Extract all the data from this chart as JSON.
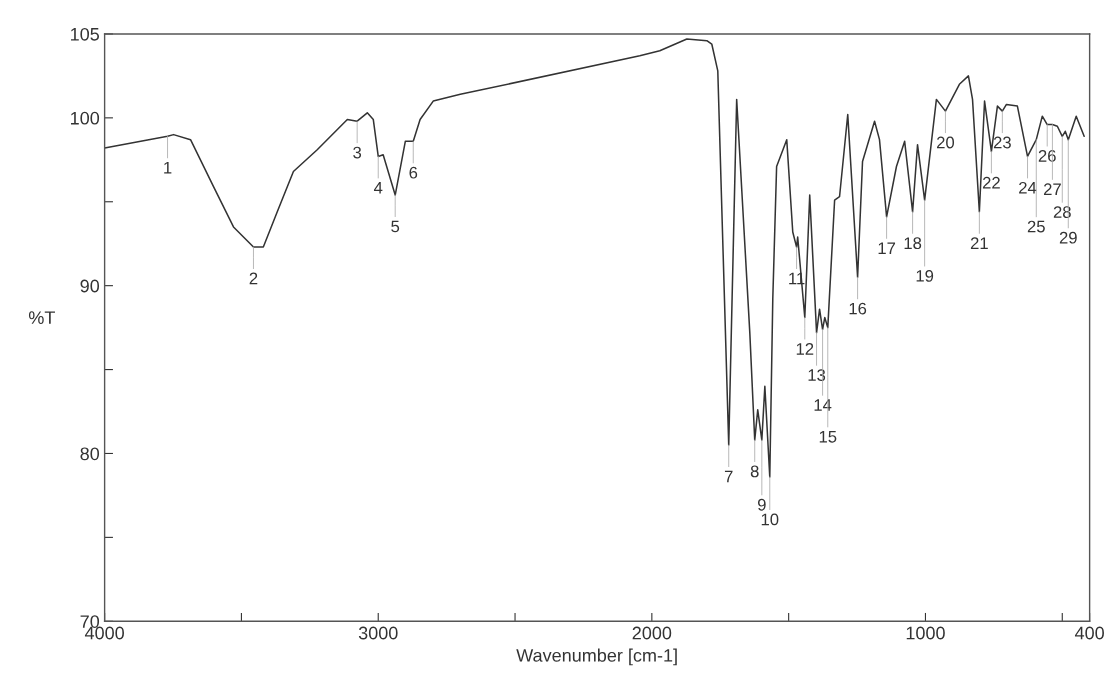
{
  "chart_data": {
    "type": "line",
    "xlabel": "Wavenumber [cm-1]",
    "ylabel": "%T",
    "xlim": [
      4000,
      400
    ],
    "ylim": [
      70,
      105
    ],
    "xticks": [
      4000,
      {
        "value": 3500,
        "label": null
      },
      3000,
      {
        "value": 2500,
        "label": null
      },
      2000,
      {
        "value": 1500,
        "label": null
      },
      1000,
      {
        "value": 500,
        "label": null
      },
      400
    ],
    "yticks": [
      70,
      {
        "value": 75,
        "label": null
      },
      80,
      {
        "value": 85,
        "label": null
      },
      90,
      {
        "value": 95,
        "label": null
      },
      100,
      105
    ],
    "grid": false,
    "legend": false,
    "marker": "none",
    "line_style": "solid",
    "series": [
      {
        "color": "#333333",
        "x": [
          4000,
          3770,
          3748,
          3686,
          3602,
          3529,
          3456,
          3420,
          3369,
          3310,
          3223,
          3113,
          3077,
          3040,
          3018,
          3000,
          2982,
          2938,
          2901,
          2872,
          2847,
          2799,
          2700,
          2044,
          1971,
          1872,
          1799,
          1781,
          1759,
          1719,
          1690,
          1642,
          1624,
          1613,
          1598,
          1587,
          1569,
          1558,
          1544,
          1507,
          1485,
          1471,
          1467,
          1441,
          1423,
          1398,
          1387,
          1376,
          1368,
          1357,
          1332,
          1314,
          1284,
          1248,
          1230,
          1186,
          1168,
          1142,
          1106,
          1076,
          1047,
          1029,
          1003,
          960,
          927,
          876,
          843,
          828,
          803,
          784,
          759,
          737,
          719,
          704,
          664,
          627,
          595,
          573,
          555,
          536,
          518,
          500,
          489,
          478,
          449,
          420
        ],
        "values": [
          98.2,
          98.9,
          99.0,
          98.7,
          95.9,
          93.5,
          92.3,
          92.3,
          94.4,
          96.8,
          98.1,
          99.9,
          99.8,
          100.3,
          99.9,
          97.7,
          97.8,
          95.4,
          98.6,
          98.6,
          99.9,
          101.0,
          101.4,
          103.7,
          104.0,
          104.7,
          104.6,
          104.4,
          102.8,
          80.5,
          101.1,
          87.2,
          80.8,
          82.6,
          80.8,
          84.0,
          78.6,
          89.2,
          97.1,
          98.7,
          93.2,
          92.3,
          92.9,
          88.1,
          95.4,
          87.2,
          88.6,
          87.4,
          88.1,
          87.5,
          95.1,
          95.3,
          100.2,
          90.5,
          97.4,
          99.8,
          98.7,
          94.1,
          97.1,
          98.6,
          94.4,
          98.4,
          95.1,
          101.1,
          100.4,
          102.0,
          102.5,
          101.1,
          94.4,
          101.0,
          98.0,
          100.7,
          100.4,
          100.8,
          100.7,
          97.7,
          98.7,
          100.1,
          99.6,
          99.6,
          99.5,
          98.9,
          99.2,
          98.7,
          100.1,
          98.9
        ]
      }
    ],
    "annotations": [
      {
        "text": "1",
        "x": 3770,
        "y": 98.9
      },
      {
        "text": "2",
        "x": 3456,
        "y": 92.3
      },
      {
        "text": "3",
        "x": 3077,
        "y": 99.8
      },
      {
        "text": "4",
        "x": 3000,
        "y": 97.7
      },
      {
        "text": "5",
        "x": 2938,
        "y": 95.4
      },
      {
        "text": "6",
        "x": 2872,
        "y": 98.6
      },
      {
        "text": "7",
        "x": 1719,
        "y": 80.5
      },
      {
        "text": "8",
        "x": 1624,
        "y": 80.8
      },
      {
        "text": "9",
        "x": 1598,
        "y": 80.8
      },
      {
        "text": "10",
        "x": 1569,
        "y": 78.6
      },
      {
        "text": "11",
        "x": 1471,
        "y": 92.3
      },
      {
        "text": "12",
        "x": 1441,
        "y": 88.1
      },
      {
        "text": "13",
        "x": 1398,
        "y": 87.2
      },
      {
        "text": "14",
        "x": 1376,
        "y": 87.4
      },
      {
        "text": "15",
        "x": 1357,
        "y": 87.5
      },
      {
        "text": "16",
        "x": 1248,
        "y": 90.5
      },
      {
        "text": "17",
        "x": 1142,
        "y": 94.1
      },
      {
        "text": "18",
        "x": 1047,
        "y": 94.4
      },
      {
        "text": "19",
        "x": 1003,
        "y": 95.1
      },
      {
        "text": "20",
        "x": 927,
        "y": 100.4
      },
      {
        "text": "21",
        "x": 803,
        "y": 94.4
      },
      {
        "text": "22",
        "x": 759,
        "y": 98.0
      },
      {
        "text": "23",
        "x": 719,
        "y": 100.4
      },
      {
        "text": "24",
        "x": 627,
        "y": 97.7
      },
      {
        "text": "25",
        "x": 595,
        "y": 98.7
      },
      {
        "text": "26",
        "x": 555,
        "y": 99.6
      },
      {
        "text": "27",
        "x": 536,
        "y": 99.6
      },
      {
        "text": "28",
        "x": 500,
        "y": 98.9
      },
      {
        "text": "29",
        "x": 478,
        "y": 98.7
      }
    ]
  }
}
